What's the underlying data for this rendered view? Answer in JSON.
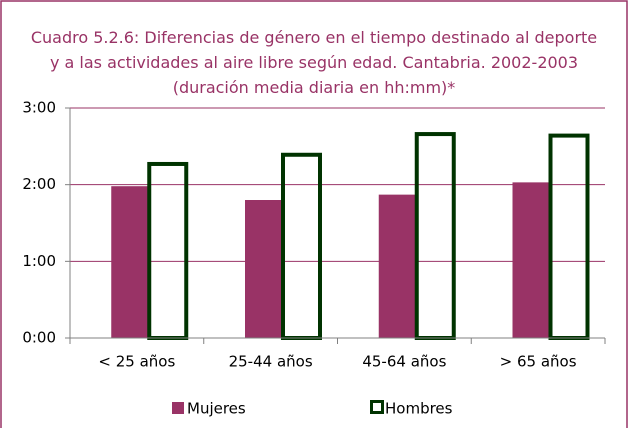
{
  "chart_data": {
    "type": "bar",
    "title": "Cuadro 5.2.6: Diferencias de género en el tiempo destinado al deporte y a las actividades al aire libre según edad. Cantabria. 2002-2003 (duración media diaria en hh:mm)*",
    "categories": [
      "< 25 años",
      "25-44 años",
      "45-64 años",
      "> 65 años"
    ],
    "series": [
      {
        "name": "Mujeres",
        "color": "#993366",
        "values": [
          1.98,
          1.8,
          1.87,
          2.03
        ]
      },
      {
        "name": "Hombres",
        "color": "#003300",
        "values": [
          2.27,
          2.39,
          2.66,
          2.64
        ]
      }
    ],
    "ylim": [
      0,
      3
    ],
    "yticks": [
      {
        "value": 0,
        "label": "0:00"
      },
      {
        "value": 1,
        "label": "1:00"
      },
      {
        "value": 2,
        "label": "2:00"
      },
      {
        "value": 3,
        "label": "3:00"
      }
    ],
    "grid": true
  }
}
